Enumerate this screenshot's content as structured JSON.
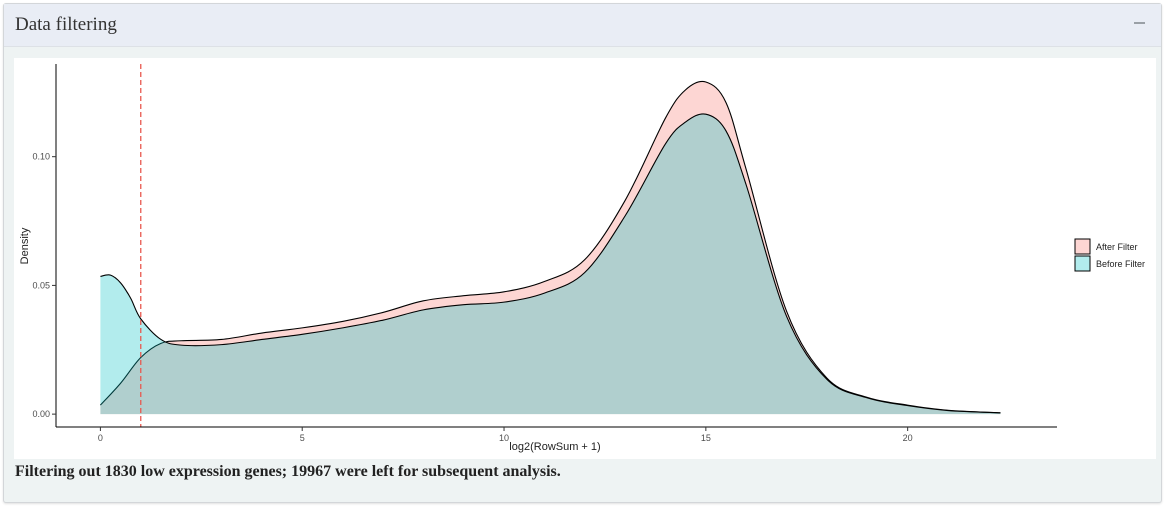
{
  "panel": {
    "title": "Data filtering",
    "collapse_icon": "minus-icon"
  },
  "summary_text": "Filtering out 1830 low expression genes; 19967 were left for subsequent analysis.",
  "colors": {
    "after_filter": "#f8766d",
    "before_filter": "#00bfc4",
    "threshold_line": "#e8584f"
  },
  "chart_data": {
    "type": "area",
    "title": "",
    "xlabel": "log2(RowSum + 1)",
    "ylabel": "Density",
    "xlim": [
      -1.1,
      23.7
    ],
    "ylim": [
      -0.005,
      0.136
    ],
    "x_ticks": [
      0,
      5,
      10,
      15,
      20
    ],
    "x_tick_labels": [
      "0",
      "5",
      "10",
      "15",
      "20"
    ],
    "y_ticks": [
      0.0,
      0.05,
      0.1
    ],
    "y_tick_labels": [
      "0.00",
      "0.05",
      "0.10"
    ],
    "grid": false,
    "legend_position": "right",
    "threshold_x": 1,
    "series": [
      {
        "name": "After Filter",
        "x": [
          0,
          0.5,
          1,
          1.5,
          2,
          3,
          4,
          5,
          6,
          7,
          8,
          9,
          10,
          11,
          12,
          13,
          14,
          14.5,
          15,
          15.5,
          16,
          17,
          18,
          19,
          20,
          21,
          22.3
        ],
        "values": [
          0.0035,
          0.012,
          0.022,
          0.0275,
          0.0285,
          0.029,
          0.0315,
          0.0335,
          0.036,
          0.0395,
          0.044,
          0.046,
          0.0475,
          0.0515,
          0.06,
          0.083,
          0.115,
          0.126,
          0.129,
          0.121,
          0.095,
          0.04,
          0.014,
          0.0065,
          0.0035,
          0.0015,
          0.0005
        ]
      },
      {
        "name": "Before Filter",
        "x": [
          0,
          0.25,
          0.5,
          0.75,
          1,
          1.5,
          2,
          3,
          4,
          5,
          6,
          7,
          8,
          9,
          10,
          11,
          12,
          13,
          14,
          14.5,
          15,
          15.5,
          16,
          17,
          18,
          19,
          20,
          21,
          22.3
        ],
        "values": [
          0.0535,
          0.054,
          0.051,
          0.045,
          0.037,
          0.029,
          0.0268,
          0.027,
          0.029,
          0.031,
          0.0335,
          0.0365,
          0.0405,
          0.0425,
          0.0435,
          0.047,
          0.055,
          0.077,
          0.105,
          0.1135,
          0.1165,
          0.11,
          0.089,
          0.038,
          0.0135,
          0.0063,
          0.0033,
          0.0014,
          0.0005
        ]
      }
    ]
  }
}
